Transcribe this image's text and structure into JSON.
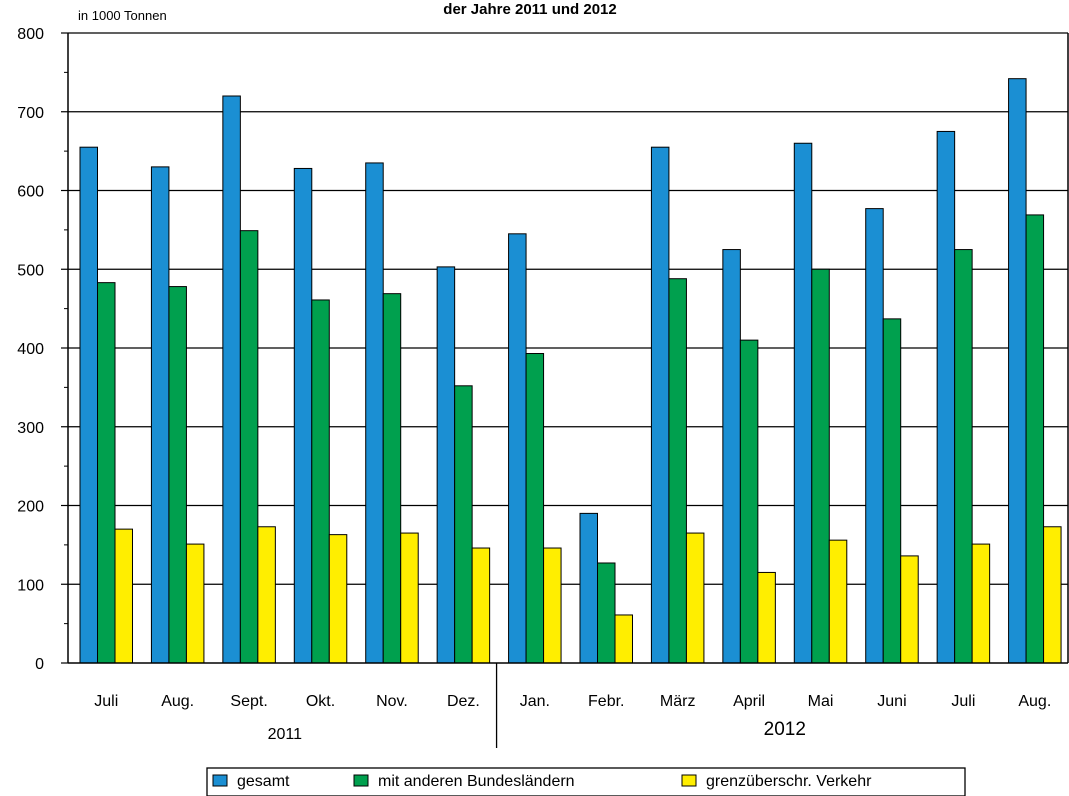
{
  "chart_data": {
    "type": "bar",
    "title": "der Jahre 2011 und 2012",
    "unit_label": "in 1000 Tonnen",
    "ylim": [
      0,
      800
    ],
    "yticks": [
      0,
      100,
      200,
      300,
      400,
      500,
      600,
      700,
      800
    ],
    "grid": true,
    "legend_position": "bottom",
    "categories": [
      "Juli",
      "Aug.",
      "Sept.",
      "Okt.",
      "Nov.",
      "Dez.",
      "Jan.",
      "Febr.",
      "März",
      "April",
      "Mai",
      "Juni",
      "Juli",
      "Aug."
    ],
    "year_groups": [
      {
        "label": "2011",
        "start": 0,
        "end": 5
      },
      {
        "label": "2012",
        "start": 6,
        "end": 13
      }
    ],
    "series": [
      {
        "name": "gesamt",
        "color": "#1b8fd3",
        "values": [
          655,
          630,
          720,
          628,
          635,
          503,
          545,
          190,
          655,
          525,
          660,
          577,
          675,
          742
        ]
      },
      {
        "name": "mit anderen Bundesländern",
        "color": "#00a04e",
        "values": [
          483,
          478,
          549,
          461,
          469,
          352,
          393,
          127,
          488,
          410,
          500,
          437,
          525,
          569
        ]
      },
      {
        "name": "grenzüberschr. Verkehr",
        "color": "#ffee00",
        "values": [
          170,
          151,
          173,
          163,
          165,
          146,
          146,
          61,
          165,
          115,
          156,
          136,
          151,
          173
        ]
      }
    ]
  }
}
